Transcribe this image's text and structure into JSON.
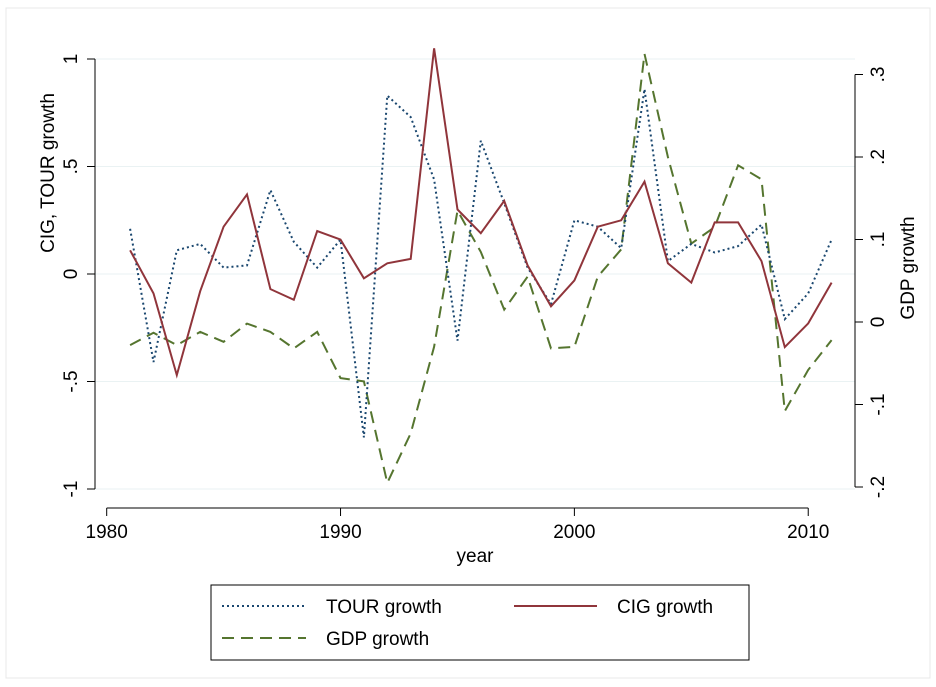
{
  "chart_data": {
    "type": "line",
    "xlabel": "year",
    "ylabel_left": "CIG, TOUR growth",
    "ylabel_right": "GDP growth",
    "x_ticks": [
      "1980",
      "1990",
      "2000",
      "2010"
    ],
    "x_tick_values": [
      1980,
      1990,
      2000,
      2010
    ],
    "y_left_ticks": [
      "-1",
      "-.5",
      "0",
      ".5",
      "1"
    ],
    "y_left_tick_values": [
      -1,
      -0.5,
      0,
      0.5,
      1
    ],
    "y_right_ticks": [
      "-.2",
      "-.1",
      "0",
      ".1",
      ".2",
      ".3"
    ],
    "y_right_tick_values": [
      -0.2,
      -0.1,
      0,
      0.1,
      0.2,
      0.3
    ],
    "xlim": [
      1979.5,
      2012
    ],
    "ylim_left": [
      -1.05,
      1.05
    ],
    "ylim_right": [
      -0.2,
      0.325
    ],
    "grid": "horizontal, left axis",
    "legend_position": "bottom",
    "x": [
      1981,
      1982,
      1983,
      1984,
      1985,
      1986,
      1987,
      1988,
      1989,
      1990,
      1991,
      1992,
      1993,
      1994,
      1995,
      1996,
      1997,
      1998,
      1999,
      2000,
      2001,
      2002,
      2003,
      2004,
      2005,
      2006,
      2007,
      2008,
      2009,
      2010,
      2011
    ],
    "series": [
      {
        "name": "TOUR growth",
        "axis": "left",
        "color": "#1a476f",
        "dash": "dotted",
        "values": [
          0.21,
          -0.41,
          0.11,
          0.14,
          0.03,
          0.04,
          0.39,
          0.15,
          0.03,
          0.16,
          -0.76,
          0.83,
          0.73,
          0.44,
          -0.31,
          0.62,
          0.33,
          0.03,
          -0.14,
          0.25,
          0.22,
          0.12,
          0.86,
          0.06,
          0.14,
          0.1,
          0.13,
          0.23,
          -0.21,
          -0.09,
          0.16
        ]
      },
      {
        "name": "CIG growth",
        "axis": "left",
        "color": "#90353b",
        "dash": "solid",
        "values": [
          0.11,
          -0.09,
          -0.47,
          -0.08,
          0.22,
          0.37,
          -0.07,
          -0.12,
          0.2,
          0.16,
          -0.02,
          0.05,
          0.07,
          1.05,
          0.3,
          0.19,
          0.34,
          0.04,
          -0.15,
          -0.03,
          0.22,
          0.25,
          0.43,
          0.05,
          -0.04,
          0.24,
          0.24,
          0.06,
          -0.34,
          -0.23,
          -0.04
        ]
      },
      {
        "name": "GDP growth",
        "axis": "right",
        "color": "#55752f",
        "dash": "dashed",
        "values": [
          -0.028,
          -0.013,
          -0.028,
          -0.012,
          -0.024,
          -0.002,
          -0.012,
          -0.032,
          -0.012,
          -0.068,
          -0.072,
          -0.195,
          -0.135,
          -0.03,
          0.135,
          0.085,
          0.015,
          0.055,
          -0.032,
          -0.03,
          0.055,
          0.088,
          0.325,
          0.2,
          0.095,
          0.115,
          0.19,
          0.173,
          -0.108,
          -0.058,
          -0.022
        ]
      }
    ]
  }
}
